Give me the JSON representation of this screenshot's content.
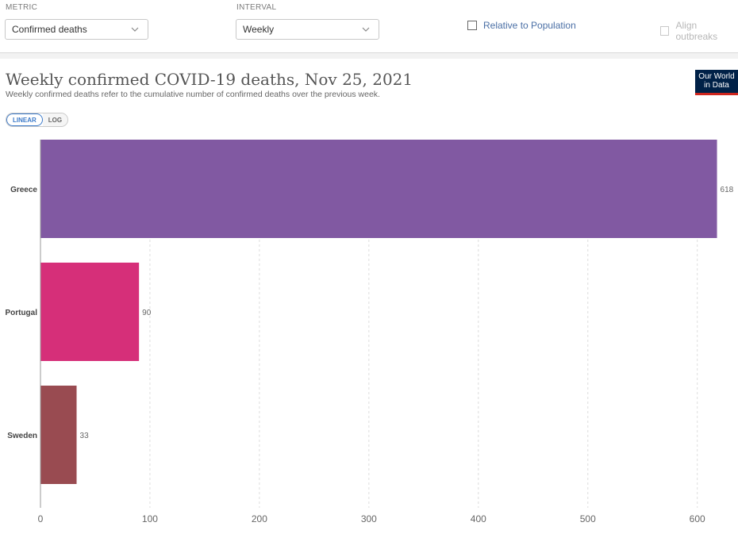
{
  "controls": {
    "metric_label": "METRIC",
    "metric_value": "Confirmed deaths",
    "interval_label": "INTERVAL",
    "interval_value": "Weekly",
    "relative_label": "Relative to Population",
    "align_label": "Align outbreaks"
  },
  "header": {
    "title": "Weekly confirmed COVID-19 deaths, Nov 25, 2021",
    "subtitle": "Weekly confirmed deaths refer to the cumulative number of confirmed deaths over the previous week.",
    "logo_line1": "Our World",
    "logo_line2": "in Data"
  },
  "scale_toggle": {
    "linear": "LINEAR",
    "log": "LOG",
    "selected": "LINEAR"
  },
  "chart_data": {
    "type": "bar",
    "orientation": "horizontal",
    "title": "Weekly confirmed COVID-19 deaths, Nov 25, 2021",
    "categories": [
      "Greece",
      "Portugal",
      "Sweden"
    ],
    "values": [
      618,
      90,
      33
    ],
    "colors": [
      "#8159a2",
      "#d62f79",
      "#994b51"
    ],
    "xlim": [
      0,
      640
    ],
    "xticks": [
      0,
      100,
      200,
      300,
      400,
      500,
      600
    ],
    "grid": "vertical dashed"
  }
}
